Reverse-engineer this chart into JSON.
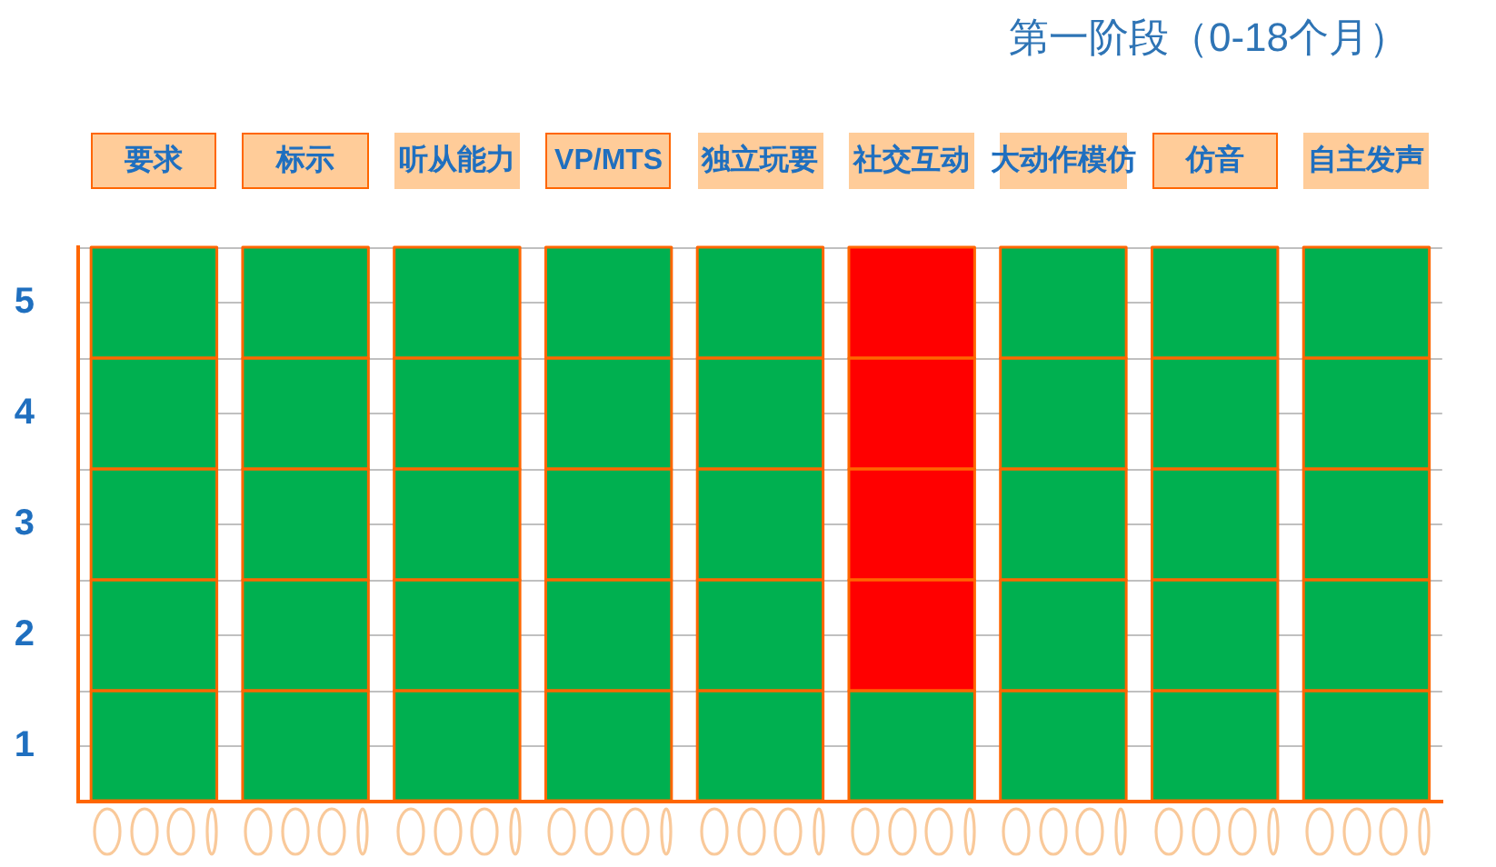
{
  "chart_data": {
    "type": "bar",
    "title": "第一阶段（0-18个月）",
    "stacked": true,
    "grid": "y",
    "categories": [
      "要求",
      "标示",
      "听从能力",
      "VP/MTS",
      "独立玩要",
      "社交互动",
      "大动作模仿",
      "仿音",
      "自主发声"
    ],
    "series": [
      {
        "colors": [
          "#00b050",
          "#00b050",
          "#00b050",
          "#00b050",
          "#00b050",
          "#00b050",
          "#00b050",
          "#00b050",
          "#00b050"
        ],
        "values": [
          1,
          1,
          1,
          1,
          1,
          1,
          1,
          1,
          1
        ]
      },
      {
        "colors": [
          "#00b050",
          "#00b050",
          "#00b050",
          "#00b050",
          "#00b050",
          "#ff0000",
          "#00b050",
          "#00b050",
          "#00b050"
        ],
        "values": [
          1,
          1,
          1,
          1,
          1,
          1,
          1,
          1,
          1
        ]
      },
      {
        "colors": [
          "#00b050",
          "#00b050",
          "#00b050",
          "#00b050",
          "#00b050",
          "#ff0000",
          "#00b050",
          "#00b050",
          "#00b050"
        ],
        "values": [
          1,
          1,
          1,
          1,
          1,
          1,
          1,
          1,
          1
        ]
      },
      {
        "colors": [
          "#00b050",
          "#00b050",
          "#00b050",
          "#00b050",
          "#00b050",
          "#ff0000",
          "#00b050",
          "#00b050",
          "#00b050"
        ],
        "values": [
          1,
          1,
          1,
          1,
          1,
          1,
          1,
          1,
          1
        ]
      },
      {
        "colors": [
          "#00b050",
          "#00b050",
          "#00b050",
          "#00b050",
          "#00b050",
          "#ff0000",
          "#00b050",
          "#00b050",
          "#00b050"
        ],
        "values": [
          1,
          1,
          1,
          1,
          1,
          1,
          1,
          1,
          1
        ]
      }
    ],
    "ylim": [
      0,
      5
    ],
    "yticks": [
      {
        "value": 0,
        "label": null
      },
      {
        "value": 0.5,
        "label": "1"
      },
      {
        "value": 1,
        "label": null
      },
      {
        "value": 1.5,
        "label": "2"
      },
      {
        "value": 2,
        "label": null
      },
      {
        "value": 2.5,
        "label": "3"
      },
      {
        "value": 3,
        "label": null
      },
      {
        "value": 3.5,
        "label": "4"
      },
      {
        "value": 4,
        "label": null
      },
      {
        "value": 4.5,
        "label": "5"
      },
      {
        "value": 5,
        "label": null
      }
    ]
  }
}
